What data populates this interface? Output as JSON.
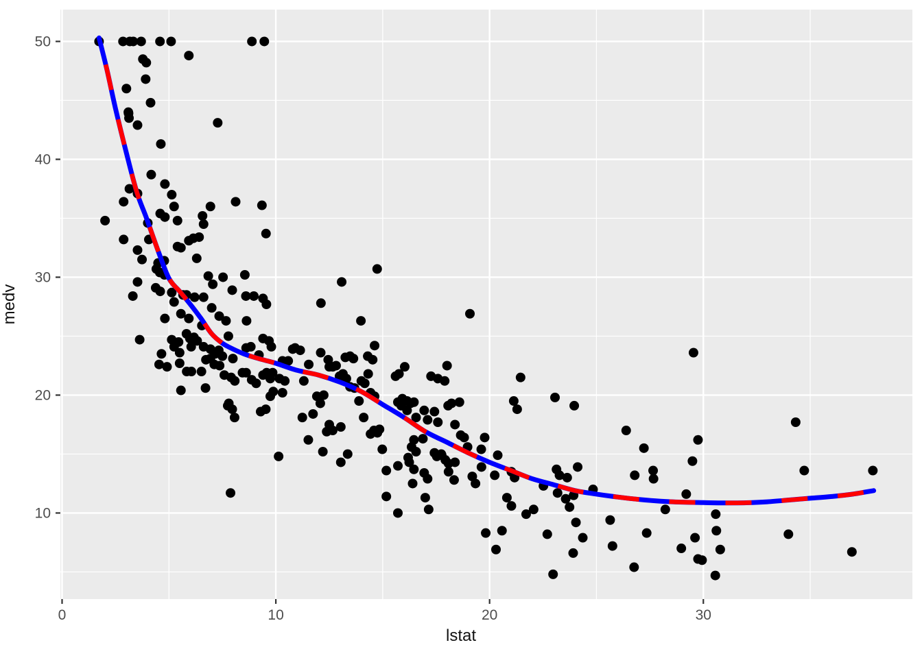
{
  "chart_data": {
    "type": "scatter",
    "title": "",
    "xlabel": "lstat",
    "ylabel": "medv",
    "legend": "none",
    "grid": "major-and-minor",
    "panel_bg": "#EBEBEB",
    "grid_color": "#FFFFFF",
    "point_color": "#000000",
    "tick_color": "#333333",
    "tick_label_color": "#4D4D4D",
    "xlim": [
      -0.08,
      39.78
    ],
    "ylim": [
      2.7,
      52.7
    ],
    "x_ticks": [
      0,
      10,
      20,
      30
    ],
    "y_ticks": [
      10,
      20,
      30,
      40,
      50
    ],
    "x_minor_ticks": [
      5,
      15,
      25,
      35
    ],
    "y_minor_ticks": [
      5,
      15,
      25,
      35,
      45
    ],
    "fit_line": {
      "description": "polynomial smooth fit drawn twice: thick solid blue underneath, thick dashed red on top",
      "solid_color": "#0000FF",
      "dashed_color": "#FF0000",
      "curve": [
        [
          1.73,
          50.3
        ],
        [
          2.1,
          47.6
        ],
        [
          2.5,
          44.3
        ],
        [
          3.0,
          40.6
        ],
        [
          3.5,
          37.2
        ],
        [
          3.95,
          35.0
        ],
        [
          4.5,
          32.2
        ],
        [
          5.0,
          29.9
        ],
        [
          5.5,
          28.8
        ],
        [
          6.0,
          27.7
        ],
        [
          6.5,
          26.5
        ],
        [
          7.0,
          25.2
        ],
        [
          7.5,
          24.4
        ],
        [
          8.0,
          23.9
        ],
        [
          8.5,
          23.5
        ],
        [
          9.0,
          23.2
        ],
        [
          9.5,
          22.95
        ],
        [
          10.0,
          22.7
        ],
        [
          11.0,
          22.1
        ],
        [
          12.0,
          21.7
        ],
        [
          13.0,
          21.1
        ],
        [
          14.0,
          20.3
        ],
        [
          15.0,
          19.2
        ],
        [
          16.0,
          18.1
        ],
        [
          17.0,
          16.9
        ],
        [
          18.0,
          16.0
        ],
        [
          19.0,
          15.1
        ],
        [
          20.0,
          14.3
        ],
        [
          21.0,
          13.6
        ],
        [
          22.0,
          12.9
        ],
        [
          23.0,
          12.4
        ],
        [
          24.0,
          11.9
        ],
        [
          25.0,
          11.6
        ],
        [
          26.0,
          11.35
        ],
        [
          27.0,
          11.15
        ],
        [
          28.0,
          11.0
        ],
        [
          29.0,
          10.92
        ],
        [
          30.0,
          10.88
        ],
        [
          31.0,
          10.85
        ],
        [
          32.0,
          10.87
        ],
        [
          33.0,
          10.95
        ],
        [
          34.0,
          11.1
        ],
        [
          35.0,
          11.25
        ],
        [
          36.0,
          11.4
        ],
        [
          37.0,
          11.6
        ],
        [
          37.97,
          11.9
        ]
      ]
    },
    "points": [
      [
        1.73,
        50
      ],
      [
        2.85,
        50
      ],
      [
        3.17,
        50
      ],
      [
        3.33,
        50
      ],
      [
        3.7,
        50
      ],
      [
        4.58,
        50
      ],
      [
        5.1,
        50
      ],
      [
        8.88,
        50
      ],
      [
        9.46,
        50
      ],
      [
        5.93,
        48.8
      ],
      [
        3.78,
        48.5
      ],
      [
        3.94,
        48.2
      ],
      [
        3.91,
        46.8
      ],
      [
        3.01,
        46.0
      ],
      [
        4.14,
        44.8
      ],
      [
        3.1,
        44.0
      ],
      [
        3.11,
        43.9
      ],
      [
        3.13,
        43.5
      ],
      [
        3.53,
        42.9
      ],
      [
        7.28,
        43.1
      ],
      [
        4.62,
        41.3
      ],
      [
        4.17,
        38.7
      ],
      [
        3.15,
        37.5
      ],
      [
        3.53,
        37.1
      ],
      [
        4.81,
        37.9
      ],
      [
        2.88,
        36.4
      ],
      [
        5.13,
        37.0
      ],
      [
        5.24,
        36.0
      ],
      [
        2.01,
        34.8
      ],
      [
        6.94,
        36.0
      ],
      [
        6.57,
        35.2
      ],
      [
        6.62,
        34.5
      ],
      [
        8.12,
        36.4
      ],
      [
        9.35,
        36.1
      ],
      [
        9.54,
        33.7
      ],
      [
        4.59,
        35.4
      ],
      [
        4.81,
        35.1
      ],
      [
        4.01,
        34.6
      ],
      [
        5.4,
        34.8
      ],
      [
        6.14,
        33.3
      ],
      [
        6.41,
        33.4
      ],
      [
        5.93,
        33.1
      ],
      [
        2.88,
        33.2
      ],
      [
        4.06,
        33.2
      ],
      [
        3.53,
        32.3
      ],
      [
        3.74,
        31.5
      ],
      [
        4.49,
        31.2
      ],
      [
        4.78,
        31.4
      ],
      [
        4.41,
        30.7
      ],
      [
        4.57,
        30.4
      ],
      [
        4.79,
        30.2
      ],
      [
        5.4,
        32.6
      ],
      [
        5.56,
        32.5
      ],
      [
        6.3,
        31.6
      ],
      [
        6.84,
        30.1
      ],
      [
        7.05,
        29.4
      ],
      [
        7.53,
        30.0
      ],
      [
        7.96,
        28.9
      ],
      [
        8.55,
        30.2
      ],
      [
        8.6,
        28.4
      ],
      [
        8.97,
        28.4
      ],
      [
        9.4,
        28.2
      ],
      [
        9.56,
        27.7
      ],
      [
        3.53,
        29.6
      ],
      [
        3.31,
        28.4
      ],
      [
        4.38,
        29.1
      ],
      [
        4.59,
        28.8
      ],
      [
        5.13,
        28.7
      ],
      [
        5.24,
        27.9
      ],
      [
        5.66,
        28.5
      ],
      [
        5.82,
        28.5
      ],
      [
        6.2,
        28.3
      ],
      [
        6.62,
        28.3
      ],
      [
        14.74,
        30.7
      ],
      [
        13.08,
        29.6
      ],
      [
        12.11,
        27.8
      ],
      [
        4.81,
        26.5
      ],
      [
        5.56,
        26.9
      ],
      [
        5.93,
        26.5
      ],
      [
        6.54,
        25.9
      ],
      [
        7.0,
        27.4
      ],
      [
        7.35,
        26.7
      ],
      [
        7.67,
        26.3
      ],
      [
        8.63,
        26.3
      ],
      [
        3.63,
        24.7
      ],
      [
        5.82,
        25.2
      ],
      [
        5.13,
        24.7
      ],
      [
        5.45,
        24.5
      ],
      [
        5.98,
        24.8
      ],
      [
        6.17,
        24.9
      ],
      [
        6.32,
        24.6
      ],
      [
        6.04,
        24.1
      ],
      [
        6.62,
        24.1
      ],
      [
        5.24,
        24.1
      ],
      [
        5.5,
        23.6
      ],
      [
        4.65,
        23.5
      ],
      [
        4.54,
        22.6
      ],
      [
        4.91,
        22.4
      ],
      [
        6.94,
        23.9
      ],
      [
        7.16,
        23.5
      ],
      [
        7.33,
        23.8
      ],
      [
        7.5,
        23.3
      ],
      [
        7.78,
        25.0
      ],
      [
        7.99,
        23.1
      ],
      [
        8.61,
        24.0
      ],
      [
        8.83,
        24.1
      ],
      [
        9.4,
        24.8
      ],
      [
        9.68,
        24.6
      ],
      [
        9.79,
        24.1
      ],
      [
        9.21,
        23.4
      ],
      [
        5.5,
        22.7
      ],
      [
        5.83,
        22.0
      ],
      [
        6.05,
        22.0
      ],
      [
        6.52,
        22.0
      ],
      [
        6.73,
        23.0
      ],
      [
        6.94,
        23.1
      ],
      [
        7.12,
        22.6
      ],
      [
        7.37,
        22.5
      ],
      [
        7.59,
        21.7
      ],
      [
        7.91,
        21.5
      ],
      [
        8.08,
        21.2
      ],
      [
        8.44,
        21.9
      ],
      [
        8.61,
        21.9
      ],
      [
        8.87,
        21.3
      ],
      [
        9.08,
        21.0
      ],
      [
        9.4,
        21.7
      ],
      [
        9.57,
        21.9
      ],
      [
        9.74,
        21.4
      ],
      [
        9.85,
        21.9
      ],
      [
        5.56,
        20.4
      ],
      [
        6.71,
        20.6
      ],
      [
        7.8,
        19.3
      ],
      [
        7.96,
        18.8
      ],
      [
        8.07,
        18.1
      ],
      [
        7.75,
        19.1
      ],
      [
        9.29,
        18.6
      ],
      [
        9.53,
        18.8
      ],
      [
        9.74,
        19.9
      ],
      [
        9.88,
        20.3
      ],
      [
        7.88,
        11.7
      ],
      [
        13.98,
        26.3
      ],
      [
        19.08,
        26.9
      ],
      [
        14.62,
        24.2
      ],
      [
        10.31,
        22.9
      ],
      [
        10.58,
        22.9
      ],
      [
        10.9,
        24.0
      ],
      [
        11.14,
        23.8
      ],
      [
        10.79,
        23.9
      ],
      [
        11.54,
        22.6
      ],
      [
        11.31,
        21.2
      ],
      [
        10.42,
        21.2
      ],
      [
        10.17,
        21.4
      ],
      [
        10.31,
        20.2
      ],
      [
        12.1,
        23.6
      ],
      [
        12.45,
        23.0
      ],
      [
        12.66,
        22.4
      ],
      [
        12.82,
        22.5
      ],
      [
        12.5,
        22.4
      ],
      [
        13.25,
        23.2
      ],
      [
        13.47,
        23.3
      ],
      [
        13.63,
        23.1
      ],
      [
        13.14,
        21.8
      ],
      [
        12.98,
        21.6
      ],
      [
        13.3,
        21.4
      ],
      [
        13.47,
        20.7
      ],
      [
        13.68,
        20.6
      ],
      [
        14.0,
        21.2
      ],
      [
        14.16,
        21.0
      ],
      [
        14.3,
        23.3
      ],
      [
        14.53,
        23.0
      ],
      [
        14.32,
        21.8
      ],
      [
        14.43,
        20.2
      ],
      [
        14.62,
        19.9
      ],
      [
        13.89,
        19.5
      ],
      [
        14.11,
        18.1
      ],
      [
        11.92,
        19.9
      ],
      [
        12.08,
        19.3
      ],
      [
        12.24,
        20.0
      ],
      [
        11.74,
        18.4
      ],
      [
        11.24,
        18.1
      ],
      [
        12.5,
        17.5
      ],
      [
        12.66,
        17.0
      ],
      [
        12.38,
        16.9
      ],
      [
        13.04,
        17.3
      ],
      [
        11.52,
        16.2
      ],
      [
        12.2,
        15.2
      ],
      [
        13.36,
        15.0
      ],
      [
        14.43,
        16.7
      ],
      [
        14.59,
        17.0
      ],
      [
        14.75,
        16.8
      ],
      [
        14.85,
        17.1
      ],
      [
        14.98,
        15.4
      ],
      [
        15.71,
        19.4
      ],
      [
        15.92,
        19.7
      ],
      [
        16.14,
        19.5
      ],
      [
        16.3,
        19.3
      ],
      [
        16.46,
        19.4
      ],
      [
        15.87,
        19.1
      ],
      [
        15.6,
        21.6
      ],
      [
        15.76,
        21.8
      ],
      [
        16.03,
        22.4
      ],
      [
        17.26,
        21.6
      ],
      [
        17.58,
        21.4
      ],
      [
        18.01,
        22.5
      ],
      [
        17.9,
        21.2
      ],
      [
        16.14,
        18.7
      ],
      [
        16.56,
        18.1
      ],
      [
        16.94,
        18.7
      ],
      [
        17.1,
        17.9
      ],
      [
        17.42,
        18.6
      ],
      [
        17.58,
        17.7
      ],
      [
        18.06,
        19.1
      ],
      [
        18.22,
        19.3
      ],
      [
        18.59,
        19.4
      ],
      [
        18.38,
        17.5
      ],
      [
        18.65,
        16.6
      ],
      [
        18.81,
        16.4
      ],
      [
        16.88,
        16.3
      ],
      [
        16.46,
        16.2
      ],
      [
        16.35,
        15.6
      ],
      [
        16.56,
        15.2
      ],
      [
        17.42,
        15.1
      ],
      [
        17.74,
        15.0
      ],
      [
        18.97,
        15.6
      ],
      [
        19.77,
        16.4
      ],
      [
        19.61,
        15.4
      ],
      [
        10.13,
        14.8
      ],
      [
        13.04,
        14.3
      ],
      [
        15.17,
        13.6
      ],
      [
        15.71,
        14.0
      ],
      [
        16.19,
        14.7
      ],
      [
        16.24,
        14.3
      ],
      [
        16.46,
        13.7
      ],
      [
        16.94,
        13.4
      ],
      [
        17.1,
        12.9
      ],
      [
        16.4,
        12.5
      ],
      [
        16.99,
        11.3
      ],
      [
        17.15,
        10.3
      ],
      [
        15.17,
        11.4
      ],
      [
        15.71,
        10.0
      ],
      [
        17.53,
        14.8
      ],
      [
        17.76,
        14.9
      ],
      [
        17.93,
        14.5
      ],
      [
        18.08,
        14.2
      ],
      [
        18.38,
        14.3
      ],
      [
        18.08,
        13.5
      ],
      [
        18.34,
        12.8
      ],
      [
        19.19,
        13.1
      ],
      [
        19.34,
        12.5
      ],
      [
        19.62,
        13.9
      ],
      [
        19.82,
        8.3
      ],
      [
        29.54,
        23.6
      ],
      [
        21.45,
        21.5
      ],
      [
        21.13,
        19.5
      ],
      [
        21.29,
        18.8
      ],
      [
        23.06,
        19.8
      ],
      [
        23.96,
        19.1
      ],
      [
        26.39,
        17.0
      ],
      [
        27.22,
        15.5
      ],
      [
        29.75,
        16.2
      ],
      [
        20.38,
        14.9
      ],
      [
        20.24,
        13.2
      ],
      [
        21.02,
        13.5
      ],
      [
        21.17,
        13.0
      ],
      [
        22.52,
        12.3
      ],
      [
        23.13,
        13.7
      ],
      [
        23.27,
        13.2
      ],
      [
        23.18,
        11.7
      ],
      [
        23.63,
        13.0
      ],
      [
        24.12,
        13.9
      ],
      [
        23.56,
        11.2
      ],
      [
        23.74,
        10.5
      ],
      [
        23.93,
        11.5
      ],
      [
        20.81,
        11.3
      ],
      [
        21.02,
        10.6
      ],
      [
        21.71,
        9.9
      ],
      [
        22.06,
        10.3
      ],
      [
        24.84,
        12.0
      ],
      [
        26.79,
        13.2
      ],
      [
        27.65,
        13.6
      ],
      [
        27.67,
        12.9
      ],
      [
        28.22,
        10.3
      ],
      [
        29.2,
        11.6
      ],
      [
        29.49,
        14.4
      ],
      [
        25.64,
        9.4
      ],
      [
        20.58,
        8.5
      ],
      [
        20.3,
        6.9
      ],
      [
        22.7,
        8.2
      ],
      [
        24.04,
        9.2
      ],
      [
        24.36,
        7.9
      ],
      [
        23.91,
        6.6
      ],
      [
        25.75,
        7.2
      ],
      [
        26.76,
        5.4
      ],
      [
        27.35,
        8.3
      ],
      [
        28.97,
        7.0
      ],
      [
        29.61,
        7.9
      ],
      [
        29.75,
        6.1
      ],
      [
        22.97,
        4.8
      ],
      [
        34.32,
        17.7
      ],
      [
        34.72,
        13.6
      ],
      [
        37.93,
        13.6
      ],
      [
        30.58,
        9.9
      ],
      [
        30.61,
        8.5
      ],
      [
        30.79,
        6.9
      ],
      [
        29.94,
        6.0
      ],
      [
        30.56,
        4.7
      ],
      [
        33.98,
        8.2
      ],
      [
        36.95,
        6.7
      ]
    ]
  }
}
